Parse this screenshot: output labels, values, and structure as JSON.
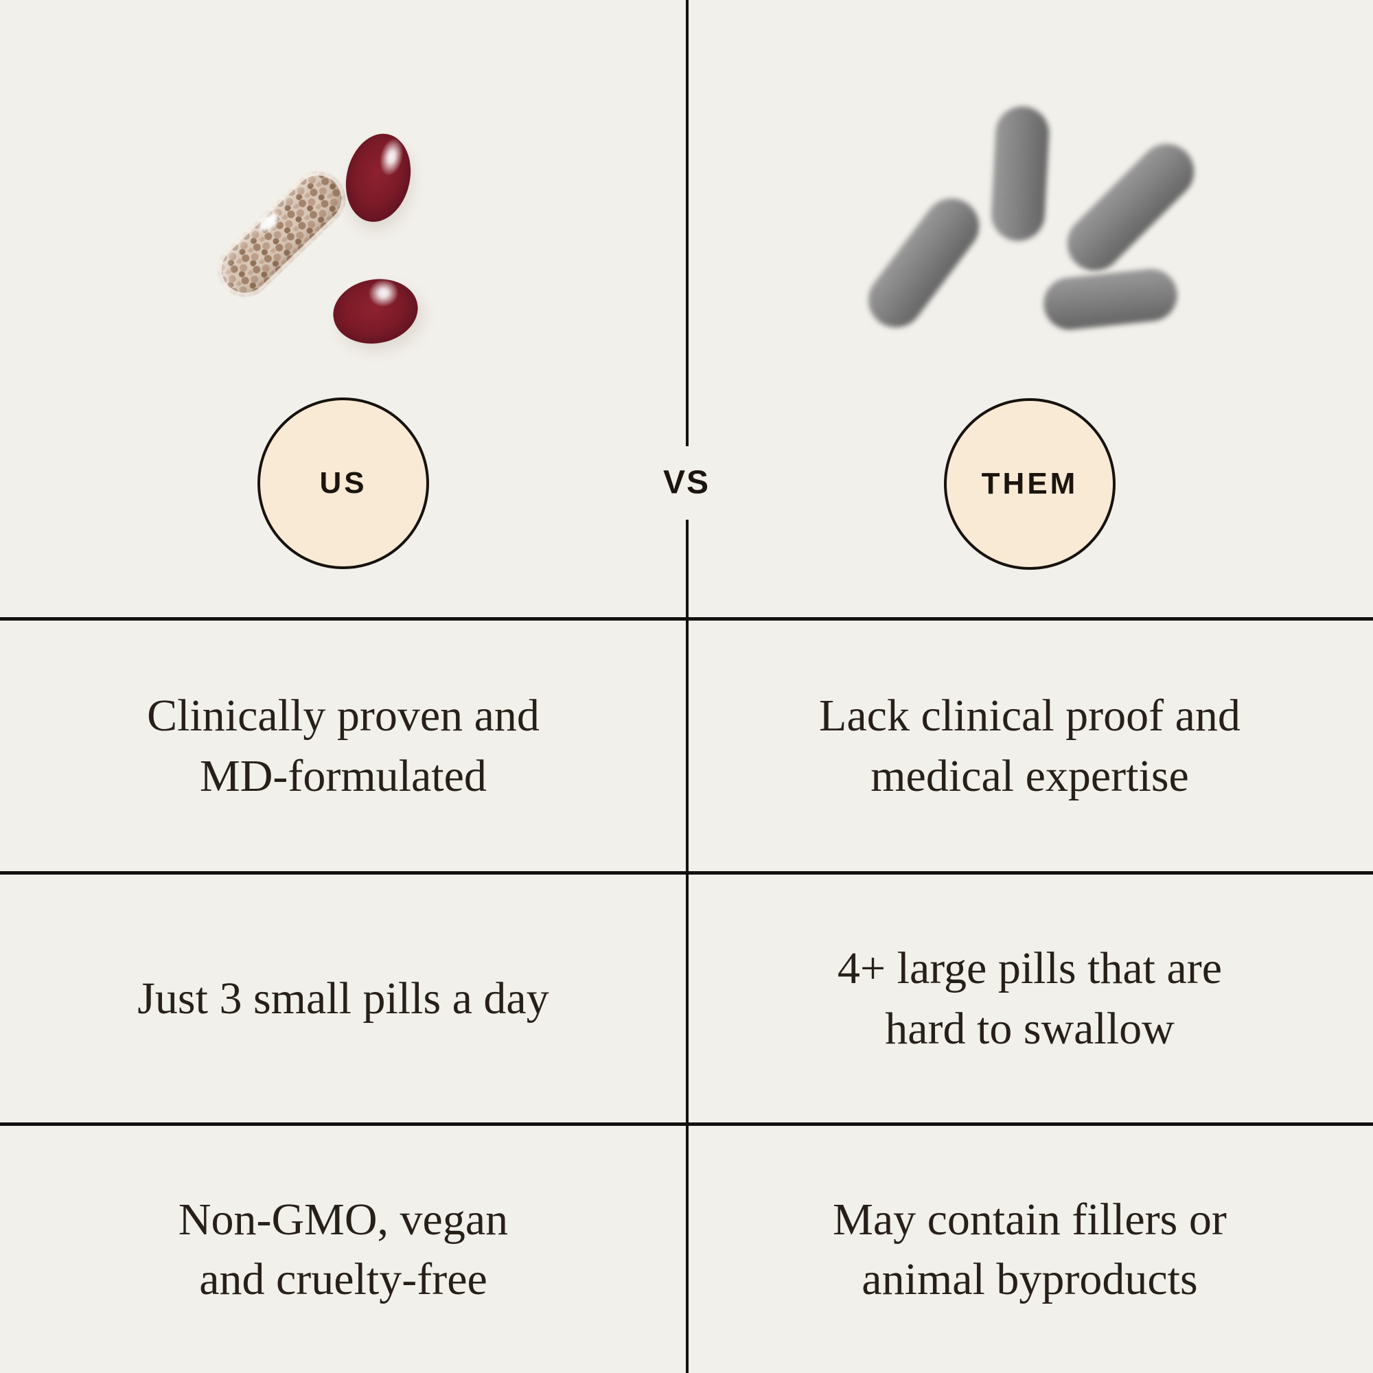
{
  "colors": {
    "background": "#f2f0eb",
    "divider": "#131110",
    "badge_fill": "#f8ead5",
    "badge_border": "#17120d",
    "text": "#272019",
    "softgel_red": "#7c1b28",
    "capsule_beads_tan": "#ab8e78",
    "gray_pill": "#7d7d7d"
  },
  "badges": {
    "us": "US",
    "them": "THEM",
    "versus": "VS"
  },
  "images": {
    "us_pills": "clear-capsule-with-tan-beads-and-two-dark-red-softgels",
    "them_pills": "four-blurry-gray-capsules"
  },
  "rows": [
    {
      "us": [
        "Clinically proven and",
        "MD-formulated"
      ],
      "them": [
        "Lack clinical proof and",
        "medical expertise"
      ]
    },
    {
      "us": [
        "Just 3 small pills a day"
      ],
      "them": [
        "4+ large pills that are",
        "hard to swallow"
      ]
    },
    {
      "us": [
        "Non-GMO, vegan",
        "and cruelty-free"
      ],
      "them": [
        "May contain fillers or",
        "animal byproducts"
      ]
    }
  ]
}
